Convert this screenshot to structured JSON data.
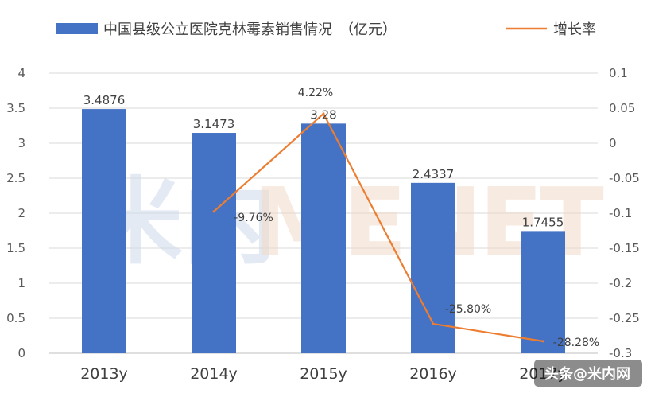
{
  "chart_data": {
    "type": "bar",
    "categories": [
      "2013y",
      "2014y",
      "2015y",
      "2016y",
      "2017y"
    ],
    "series": [
      {
        "name": "中国县级公立医院克林霉素销售情况　（亿元）",
        "type": "bar",
        "axis": "left",
        "color": "#4472c4",
        "values": [
          3.4876,
          3.1473,
          3.28,
          2.4337,
          1.7455
        ],
        "labels": [
          "3.4876",
          "3.1473",
          "3.28",
          "2.4337",
          "1.7455"
        ]
      },
      {
        "name": "增长率",
        "type": "line",
        "axis": "right",
        "color": "#ed7d31",
        "values": [
          null,
          -0.0976,
          0.0422,
          -0.258,
          -0.2828
        ],
        "labels": [
          "",
          "-9.76%",
          "4.22%",
          "-25.80%",
          "-28.28%"
        ]
      }
    ],
    "y_left": {
      "range": [
        0,
        4
      ],
      "ticks": [
        "0",
        "0.5",
        "1",
        "1.5",
        "2",
        "2.5",
        "3",
        "3.5",
        "4"
      ]
    },
    "y_right": {
      "range": [
        -0.3,
        0.1
      ],
      "ticks": [
        "0.1",
        "0.05",
        "0",
        "-0.05",
        "-0.1",
        "-0.15",
        "-0.2",
        "-0.25",
        "-0.3"
      ]
    },
    "grid": true,
    "legend_position": "top"
  },
  "watermark": {
    "text_a": "米内",
    "text_b": "MENET"
  },
  "badge": {
    "text": "头条@米内网"
  }
}
